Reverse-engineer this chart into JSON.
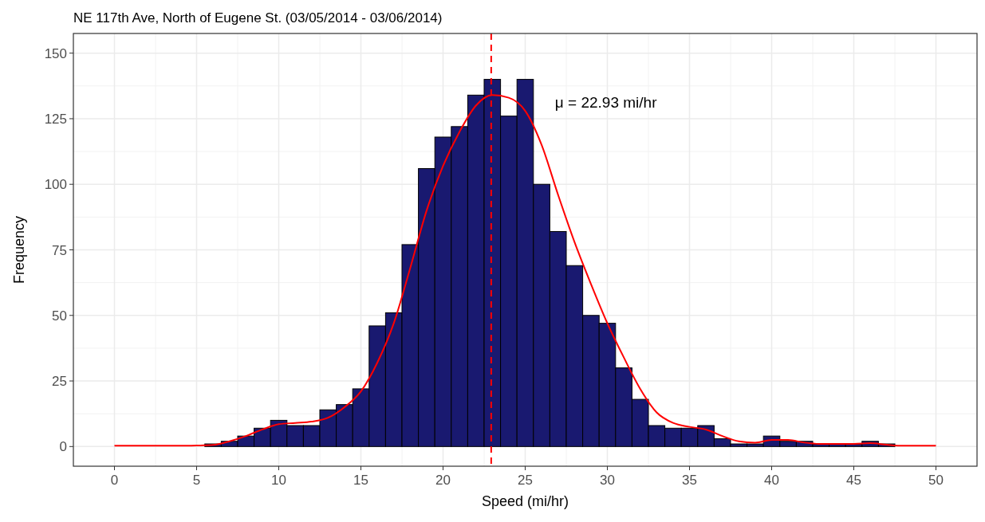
{
  "chart_data": {
    "type": "histogram",
    "title": "NE 117th Ave, North of Eugene St. (03/05/2014 - 03/06/2014)",
    "xlabel": "Speed (mi/hr)",
    "ylabel": "Frequency",
    "bins": [
      5.5,
      6.5,
      7.5,
      8.5,
      9.5,
      10.5,
      11.5,
      12.5,
      13.5,
      14.5,
      15.5,
      16.5,
      17.5,
      18.5,
      19.5,
      20.5,
      21.5,
      22.5,
      23.5,
      24.5,
      25.5,
      26.5,
      27.5,
      28.5,
      29.5,
      30.5,
      31.5,
      32.5,
      33.5,
      34.5,
      35.5,
      36.5,
      37.5,
      38.5,
      39.5,
      40.5,
      41.5,
      42.5,
      43.5,
      44.5,
      45.5,
      46.5,
      47.5
    ],
    "series": [
      {
        "values": [
          1,
          2,
          4,
          7,
          10,
          8,
          8,
          14,
          16,
          22,
          46,
          51,
          77,
          106,
          118,
          122,
          134,
          140,
          126,
          140,
          100,
          82,
          69,
          50,
          47,
          30,
          18,
          8,
          7,
          7,
          8,
          3,
          1,
          1,
          4,
          2,
          2,
          1,
          1,
          1,
          2,
          1
        ],
        "color": "#191970"
      },
      {
        "type": "line",
        "color": "#ff0000",
        "x": [
          0,
          2,
          4,
          5,
          6,
          7,
          8,
          9,
          10,
          11,
          12,
          13,
          14,
          15,
          16,
          17,
          18,
          19,
          20,
          21,
          22,
          23,
          24,
          25,
          26,
          27,
          28,
          29,
          30,
          31,
          32,
          33,
          34,
          35,
          36,
          37,
          38,
          39,
          40,
          41,
          42,
          43,
          44,
          45,
          46,
          47,
          48,
          50
        ],
        "values": [
          0.3,
          0.3,
          0.3,
          0.4,
          0.6,
          2,
          4,
          6.5,
          8.5,
          9,
          9.5,
          11,
          15,
          21,
          32,
          47,
          68,
          90,
          107,
          120,
          130,
          134,
          133,
          128,
          115,
          96,
          78,
          62,
          47,
          34,
          22,
          13,
          9,
          7.5,
          6.5,
          4,
          2,
          1.5,
          2.5,
          2.5,
          1.5,
          1,
          1,
          1,
          1.3,
          0.7,
          0.3,
          0.3
        ]
      }
    ],
    "xlim": [
      -2.5,
      52.5
    ],
    "xticks": [
      0,
      5,
      10,
      15,
      20,
      25,
      30,
      35,
      40,
      45,
      50
    ],
    "ylim": [
      -7.5,
      157.5
    ],
    "yticks": [
      0,
      25,
      50,
      75,
      100,
      125,
      150
    ],
    "grid": true,
    "annotations": [
      "μ = 22.93 mi/hr"
    ],
    "ref_lines": [
      {
        "axis": "x",
        "value": 22.93,
        "color": "#ff0000",
        "line_style": "dashed"
      }
    ]
  }
}
